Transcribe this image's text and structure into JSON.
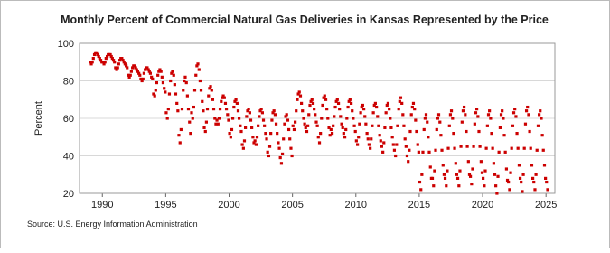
{
  "chart_data": {
    "type": "scatter",
    "title": "Monthly Percent of Commercial Natural Gas Deliveries in Kansas Represented by the Price",
    "y_label": "Percent",
    "source": "Source: U.S. Energy Information Administration",
    "color": "#cc0000",
    "grid": true,
    "xlim": [
      1988.2,
      2025.7
    ],
    "xticks": [
      1990,
      1995,
      2000,
      2005,
      2010,
      2015,
      2020,
      2025
    ],
    "ylim": [
      20,
      100
    ],
    "yticks": [
      20,
      40,
      60,
      80,
      100
    ],
    "x": [
      1989.04,
      1989.13,
      1989.21,
      1989.29,
      1989.38,
      1989.46,
      1989.54,
      1989.63,
      1989.71,
      1989.79,
      1989.88,
      1989.96,
      1990.04,
      1990.13,
      1990.21,
      1990.29,
      1990.38,
      1990.46,
      1990.54,
      1990.63,
      1990.71,
      1990.79,
      1990.88,
      1990.96,
      1991.04,
      1991.13,
      1991.21,
      1991.29,
      1991.38,
      1991.46,
      1991.54,
      1991.63,
      1991.71,
      1991.79,
      1991.88,
      1991.96,
      1992.04,
      1992.13,
      1992.21,
      1992.29,
      1992.38,
      1992.46,
      1992.54,
      1992.63,
      1992.71,
      1992.79,
      1992.88,
      1992.96,
      1993.04,
      1993.13,
      1993.21,
      1993.29,
      1993.38,
      1993.46,
      1993.54,
      1993.63,
      1993.71,
      1993.79,
      1993.88,
      1993.96,
      1994.04,
      1994.13,
      1994.21,
      1994.29,
      1994.38,
      1994.46,
      1994.54,
      1994.63,
      1994.71,
      1994.79,
      1994.88,
      1994.96,
      1995.04,
      1995.13,
      1995.21,
      1995.29,
      1995.38,
      1995.46,
      1995.54,
      1995.63,
      1995.71,
      1995.79,
      1995.88,
      1995.96,
      1996.04,
      1996.13,
      1996.21,
      1996.29,
      1996.38,
      1996.46,
      1996.54,
      1996.63,
      1996.71,
      1996.79,
      1996.88,
      1996.96,
      1997.04,
      1997.13,
      1997.21,
      1997.29,
      1997.38,
      1997.46,
      1997.54,
      1997.63,
      1997.71,
      1997.79,
      1997.88,
      1997.96,
      1998.04,
      1998.13,
      1998.21,
      1998.29,
      1998.38,
      1998.46,
      1998.54,
      1998.63,
      1998.71,
      1998.79,
      1998.88,
      1998.96,
      1999.04,
      1999.13,
      1999.21,
      1999.29,
      1999.38,
      1999.46,
      1999.54,
      1999.63,
      1999.71,
      1999.79,
      1999.88,
      1999.96,
      2000.04,
      2000.13,
      2000.21,
      2000.29,
      2000.38,
      2000.46,
      2000.54,
      2000.63,
      2000.71,
      2000.79,
      2000.88,
      2000.96,
      2001.04,
      2001.13,
      2001.21,
      2001.29,
      2001.38,
      2001.46,
      2001.54,
      2001.63,
      2001.71,
      2001.79,
      2001.88,
      2001.96,
      2002.04,
      2002.13,
      2002.21,
      2002.29,
      2002.38,
      2002.46,
      2002.54,
      2002.63,
      2002.71,
      2002.79,
      2002.88,
      2002.96,
      2003.04,
      2003.13,
      2003.21,
      2003.29,
      2003.38,
      2003.46,
      2003.54,
      2003.63,
      2003.71,
      2003.79,
      2003.88,
      2003.96,
      2004.04,
      2004.13,
      2004.21,
      2004.29,
      2004.38,
      2004.46,
      2004.54,
      2004.63,
      2004.71,
      2004.79,
      2004.88,
      2004.96,
      2005.04,
      2005.13,
      2005.21,
      2005.29,
      2005.38,
      2005.46,
      2005.54,
      2005.63,
      2005.71,
      2005.79,
      2005.88,
      2005.96,
      2006.04,
      2006.13,
      2006.21,
      2006.29,
      2006.38,
      2006.46,
      2006.54,
      2006.63,
      2006.71,
      2006.79,
      2006.88,
      2006.96,
      2007.04,
      2007.13,
      2007.21,
      2007.29,
      2007.38,
      2007.46,
      2007.54,
      2007.63,
      2007.71,
      2007.79,
      2007.88,
      2007.96,
      2008.04,
      2008.13,
      2008.21,
      2008.29,
      2008.38,
      2008.46,
      2008.54,
      2008.63,
      2008.71,
      2008.79,
      2008.88,
      2008.96,
      2009.04,
      2009.13,
      2009.21,
      2009.29,
      2009.38,
      2009.46,
      2009.54,
      2009.63,
      2009.71,
      2009.79,
      2009.88,
      2009.96,
      2010.04,
      2010.13,
      2010.21,
      2010.29,
      2010.38,
      2010.46,
      2010.54,
      2010.63,
      2010.71,
      2010.79,
      2010.88,
      2010.96,
      2011.04,
      2011.13,
      2011.21,
      2011.29,
      2011.38,
      2011.46,
      2011.54,
      2011.63,
      2011.71,
      2011.79,
      2011.88,
      2011.96,
      2012.04,
      2012.13,
      2012.21,
      2012.29,
      2012.38,
      2012.46,
      2012.54,
      2012.63,
      2012.71,
      2012.79,
      2012.88,
      2012.96,
      2013.04,
      2013.13,
      2013.21,
      2013.29,
      2013.38,
      2013.46,
      2013.54,
      2013.63,
      2013.71,
      2013.79,
      2013.88,
      2013.96,
      2014.04,
      2014.13,
      2014.21,
      2014.29,
      2014.38,
      2014.46,
      2014.54,
      2014.63,
      2014.71,
      2014.79,
      2014.88,
      2014.96,
      2015.04,
      2015.13,
      2015.21,
      2015.29,
      2015.38,
      2015.46,
      2015.54,
      2015.63,
      2015.71,
      2015.79,
      2015.88,
      2015.96,
      2016.04,
      2016.13,
      2016.21,
      2016.29,
      2016.38,
      2016.46,
      2016.54,
      2016.63,
      2016.71,
      2016.79,
      2016.88,
      2016.96,
      2017.04,
      2017.13,
      2017.21,
      2017.29,
      2017.38,
      2017.46,
      2017.54,
      2017.63,
      2017.71,
      2017.79,
      2017.88,
      2017.96,
      2018.04,
      2018.13,
      2018.21,
      2018.29,
      2018.38,
      2018.46,
      2018.54,
      2018.63,
      2018.71,
      2018.79,
      2018.88,
      2018.96,
      2019.04,
      2019.13,
      2019.21,
      2019.29,
      2019.38,
      2019.46,
      2019.54,
      2019.63,
      2019.71,
      2019.79,
      2019.88,
      2019.96,
      2020.04,
      2020.13,
      2020.21,
      2020.29,
      2020.38,
      2020.46,
      2020.54,
      2020.63,
      2020.71,
      2020.79,
      2020.88,
      2020.96,
      2021.04,
      2021.13,
      2021.21,
      2021.29,
      2021.38,
      2021.46,
      2021.54,
      2021.63,
      2021.71,
      2021.79,
      2021.88,
      2021.96,
      2022.04,
      2022.13,
      2022.21,
      2022.29,
      2022.38,
      2022.46,
      2022.54,
      2022.63,
      2022.71,
      2022.79,
      2022.88,
      2022.96,
      2023.04,
      2023.13,
      2023.21,
      2023.29,
      2023.38,
      2023.46,
      2023.54,
      2023.63,
      2023.71,
      2023.79,
      2023.88,
      2023.96,
      2024.04,
      2024.13,
      2024.21,
      2024.29,
      2024.38,
      2024.46,
      2024.54,
      2024.63,
      2024.71,
      2024.79,
      2024.88,
      2024.96,
      2025.04,
      2025.13
    ],
    "values": [
      90,
      89,
      90,
      92,
      94,
      95,
      95,
      94,
      93,
      92,
      91,
      90,
      90,
      89,
      90,
      92,
      93,
      94,
      94,
      94,
      93,
      92,
      91,
      90,
      87,
      86,
      87,
      89,
      91,
      92,
      92,
      91,
      90,
      89,
      88,
      87,
      83,
      82,
      83,
      85,
      87,
      88,
      88,
      87,
      86,
      85,
      84,
      83,
      81,
      80,
      81,
      84,
      86,
      87,
      87,
      86,
      85,
      84,
      82,
      81,
      73,
      72,
      75,
      79,
      83,
      85,
      86,
      85,
      82,
      79,
      76,
      74,
      63,
      60,
      65,
      73,
      80,
      84,
      85,
      83,
      78,
      73,
      68,
      64,
      51,
      47,
      54,
      65,
      75,
      80,
      82,
      79,
      72,
      65,
      58,
      52,
      63,
      60,
      66,
      75,
      83,
      88,
      89,
      86,
      80,
      75,
      69,
      64,
      55,
      53,
      58,
      65,
      72,
      76,
      77,
      75,
      70,
      65,
      60,
      57,
      59,
      57,
      60,
      65,
      69,
      71,
      72,
      71,
      68,
      65,
      62,
      59,
      52,
      50,
      54,
      60,
      66,
      69,
      70,
      68,
      64,
      60,
      56,
      53,
      46,
      44,
      48,
      55,
      61,
      64,
      65,
      63,
      59,
      55,
      50,
      47,
      48,
      46,
      50,
      56,
      61,
      64,
      65,
      63,
      59,
      56,
      52,
      49,
      42,
      40,
      45,
      52,
      59,
      63,
      64,
      62,
      57,
      52,
      47,
      44,
      39,
      36,
      41,
      49,
      57,
      61,
      62,
      59,
      54,
      49,
      44,
      40,
      56,
      54,
      58,
      64,
      70,
      73,
      74,
      72,
      68,
      64,
      60,
      57,
      55,
      53,
      56,
      62,
      67,
      69,
      70,
      68,
      65,
      62,
      58,
      56,
      50,
      47,
      52,
      60,
      67,
      71,
      72,
      70,
      65,
      60,
      55,
      51,
      54,
      52,
      56,
      61,
      66,
      69,
      70,
      68,
      65,
      61,
      57,
      55,
      52,
      50,
      54,
      60,
      66,
      69,
      70,
      68,
      64,
      60,
      56,
      53,
      48,
      46,
      50,
      57,
      63,
      66,
      67,
      65,
      61,
      57,
      52,
      49,
      46,
      44,
      49,
      56,
      63,
      67,
      68,
      66,
      61,
      56,
      51,
      48,
      45,
      42,
      47,
      55,
      63,
      67,
      68,
      65,
      60,
      55,
      50,
      46,
      43,
      40,
      46,
      56,
      65,
      69,
      71,
      68,
      62,
      56,
      49,
      45,
      40,
      37,
      43,
      53,
      62,
      66,
      68,
      65,
      59,
      53,
      46,
      42,
      26,
      22,
      30,
      42,
      54,
      60,
      62,
      58,
      50,
      42,
      34,
      28,
      28,
      24,
      32,
      43,
      54,
      60,
      62,
      58,
      51,
      43,
      35,
      30,
      28,
      24,
      32,
      44,
      56,
      62,
      64,
      60,
      52,
      44,
      36,
      30,
      28,
      24,
      32,
      45,
      58,
      64,
      66,
      62,
      53,
      45,
      37,
      30,
      29,
      25,
      33,
      45,
      57,
      63,
      65,
      61,
      53,
      45,
      37,
      31,
      28,
      24,
      32,
      44,
      56,
      62,
      64,
      60,
      52,
      44,
      36,
      30,
      24,
      20,
      29,
      42,
      55,
      62,
      64,
      60,
      51,
      42,
      33,
      27,
      26,
      22,
      31,
      44,
      56,
      63,
      65,
      61,
      52,
      44,
      35,
      28,
      26,
      21,
      30,
      44,
      57,
      64,
      66,
      62,
      53,
      44,
      35,
      28,
      26,
      22,
      30,
      43,
      56,
      62,
      64,
      60,
      51,
      43,
      35,
      28,
      26,
      22
    ]
  }
}
